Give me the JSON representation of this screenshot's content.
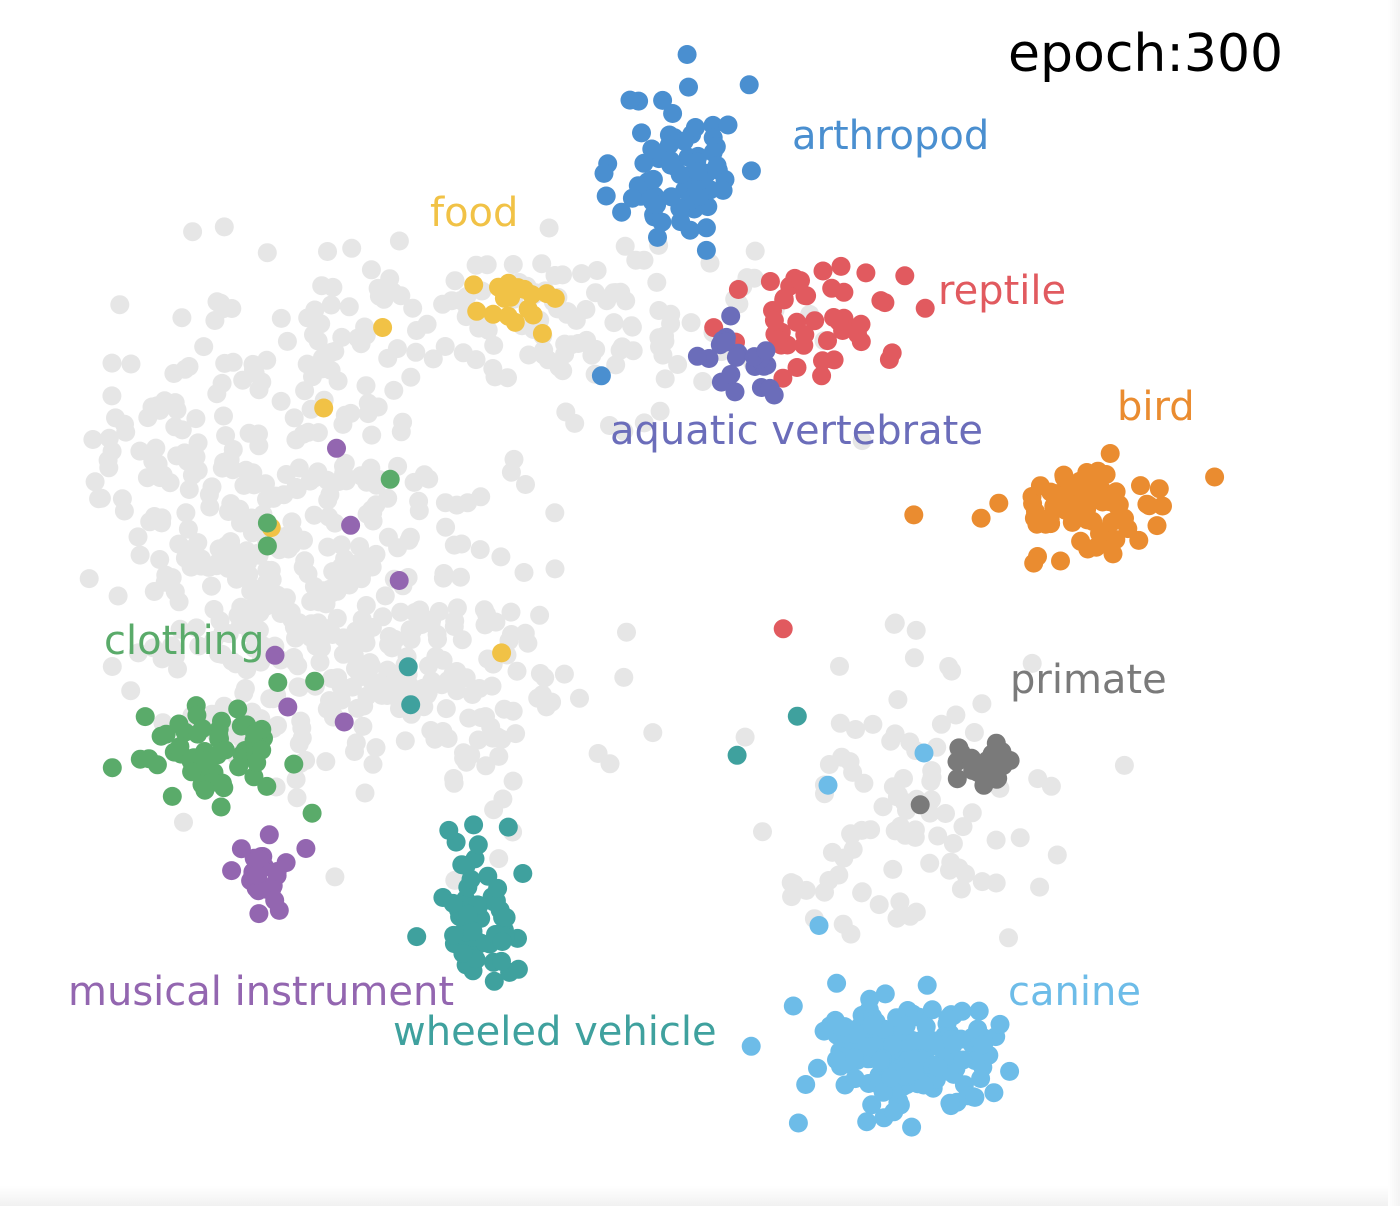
{
  "epoch_text": "epoch:300",
  "chart_data": {
    "type": "scatter",
    "title": "",
    "xlabel": "",
    "ylabel": "",
    "xlim": [
      0,
      100
    ],
    "ylim": [
      0,
      100
    ],
    "grid": false,
    "legend": "none",
    "background_color": "#e6e6e6",
    "series": [
      {
        "name": "arthropod",
        "color": "#4a8fd0",
        "center": [
          48.5,
          89.0
        ],
        "spread": [
          4.2,
          6.5
        ],
        "count": 70,
        "seed": 11,
        "extra": [
          [
            49.1,
            95.9
          ],
          [
            42.5,
            88.4
          ],
          [
            50.5,
            81.7
          ],
          [
            42.3,
            70.8
          ]
        ]
      },
      {
        "name": "reptile",
        "color": "#e15a5f",
        "center": [
          60.0,
          75.5
        ],
        "spread": [
          6.0,
          3.5
        ],
        "count": 45,
        "seed": 23,
        "extra": [
          [
            55.5,
            79.0
          ],
          [
            66.0,
            79.5
          ],
          [
            56.5,
            48.8
          ],
          [
            59.5,
            70.8
          ]
        ]
      },
      {
        "name": "aquatic vertebrate",
        "color": "#6b6dba",
        "center": [
          53.5,
          71.5
        ],
        "spread": [
          2.4,
          2.5
        ],
        "count": 20,
        "seed": 37,
        "extra": [
          [
            49.8,
            72.5
          ],
          [
            52.4,
            76.0
          ]
        ]
      },
      {
        "name": "food",
        "color": "#f1c246",
        "center": [
          35.5,
          77.3
        ],
        "spread": [
          3.5,
          2.2
        ],
        "count": 22,
        "seed": 41,
        "extra": [
          [
            20.6,
            68.0
          ],
          [
            16.5,
            57.6
          ],
          [
            34.5,
            46.7
          ],
          [
            25.2,
            75.0
          ]
        ]
      },
      {
        "name": "bird",
        "color": "#ea8c30",
        "center": [
          80.0,
          59.5
        ],
        "spread": [
          5.5,
          3.8
        ],
        "count": 80,
        "seed": 53,
        "extra": [
          [
            66.7,
            58.7
          ],
          [
            90.2,
            62.0
          ]
        ]
      },
      {
        "name": "primate",
        "color": "#7a7a7a",
        "center": [
          72.0,
          37.0
        ],
        "spread": [
          2.4,
          1.8
        ],
        "count": 30,
        "seed": 61,
        "extra": [
          [
            67.2,
            33.5
          ]
        ]
      },
      {
        "name": "canine",
        "color": "#6dbce8",
        "center": [
          66.5,
          11.5
        ],
        "spread": [
          7.5,
          5.0
        ],
        "count": 170,
        "seed": 71,
        "extra": [
          [
            67.5,
            38.0
          ],
          [
            60.0,
            35.2
          ],
          [
            59.3,
            23.0
          ],
          [
            54.0,
            12.5
          ]
        ]
      },
      {
        "name": "clothing",
        "color": "#5aab6a",
        "center": [
          12.5,
          38.0
        ],
        "spread": [
          5.5,
          4.5
        ],
        "count": 60,
        "seed": 83,
        "extra": [
          [
            16.2,
            56.0
          ],
          [
            16.2,
            58.0
          ],
          [
            25.8,
            61.8
          ]
        ]
      },
      {
        "name": "musical instrument",
        "color": "#9366b0",
        "center": [
          15.0,
          27.5
        ],
        "spread": [
          2.5,
          3.0
        ],
        "count": 30,
        "seed": 97,
        "extra": [
          [
            21.6,
            64.5
          ],
          [
            22.7,
            57.8
          ],
          [
            16.8,
            46.5
          ],
          [
            17.8,
            42.0
          ],
          [
            22.2,
            40.7
          ],
          [
            26.5,
            53.0
          ]
        ]
      },
      {
        "name": "wheeled vehicle",
        "color": "#3fa19e",
        "center": [
          32.5,
          24.0
        ],
        "spread": [
          3.0,
          6.0
        ],
        "count": 60,
        "seed": 107,
        "extra": [
          [
            27.2,
            45.5
          ],
          [
            27.4,
            42.2
          ],
          [
            52.9,
            37.8
          ],
          [
            57.6,
            41.2
          ]
        ]
      }
    ]
  }
}
